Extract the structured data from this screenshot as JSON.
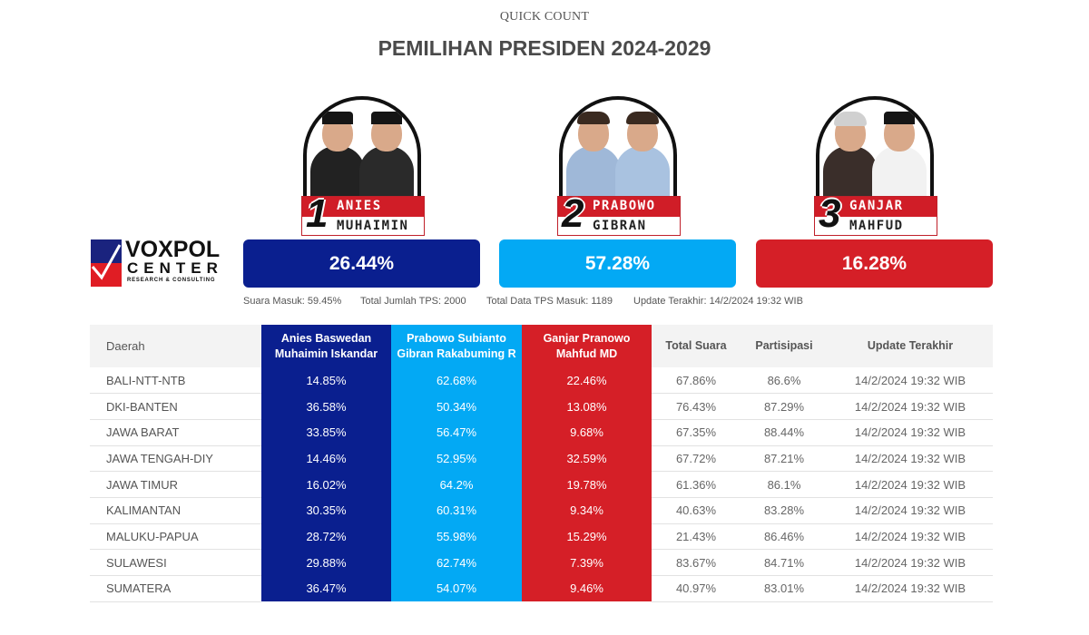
{
  "header": {
    "subtitle": "QUICK COUNT",
    "title": "PEMILIHAN PRESIDEN 2024-2029"
  },
  "logo": {
    "line1": "VOXPOL",
    "line2": "CENTER",
    "line3": "RESEARCH & CONSULTING"
  },
  "colors": {
    "candidate_1": "#0a1f8f",
    "candidate_2": "#03a9f4",
    "candidate_3": "#d51f27"
  },
  "candidates": [
    {
      "number": "1",
      "name_top": "ANIES",
      "name_bottom": "MUHAIMIN",
      "percent": "26.44%"
    },
    {
      "number": "2",
      "name_top": "PRABOWO",
      "name_bottom": "GIBRAN",
      "percent": "57.28%"
    },
    {
      "number": "3",
      "name_top": "GANJAR",
      "name_bottom": "MAHFUD",
      "percent": "16.28%"
    }
  ],
  "stats": {
    "suara_masuk": "Suara Masuk: 59.45%",
    "total_tps": "Total Jumlah TPS: 2000",
    "tps_masuk": "Total Data TPS Masuk: 1189",
    "update": "Update Terakhir: 14/2/2024 19:32 WIB"
  },
  "table": {
    "headers": {
      "daerah": "Daerah",
      "c1_line1": "Anies Baswedan",
      "c1_line2": "Muhaimin Iskandar",
      "c2_line1": "Prabowo Subianto",
      "c2_line2": "Gibran Rakabuming R",
      "c3_line1": "Ganjar Pranowo",
      "c3_line2": "Mahfud MD",
      "total": "Total Suara",
      "partisipasi": "Partisipasi",
      "update": "Update Terakhir"
    },
    "rows": [
      {
        "daerah": "BALI-NTT-NTB",
        "c1": "14.85%",
        "c2": "62.68%",
        "c3": "22.46%",
        "total": "67.86%",
        "partisipasi": "86.6%",
        "update": "14/2/2024 19:32 WIB"
      },
      {
        "daerah": "DKI-BANTEN",
        "c1": "36.58%",
        "c2": "50.34%",
        "c3": "13.08%",
        "total": "76.43%",
        "partisipasi": "87.29%",
        "update": "14/2/2024 19:32 WIB"
      },
      {
        "daerah": "JAWA BARAT",
        "c1": "33.85%",
        "c2": "56.47%",
        "c3": "9.68%",
        "total": "67.35%",
        "partisipasi": "88.44%",
        "update": "14/2/2024 19:32 WIB"
      },
      {
        "daerah": "JAWA TENGAH-DIY",
        "c1": "14.46%",
        "c2": "52.95%",
        "c3": "32.59%",
        "total": "67.72%",
        "partisipasi": "87.21%",
        "update": "14/2/2024 19:32 WIB"
      },
      {
        "daerah": "JAWA TIMUR",
        "c1": "16.02%",
        "c2": "64.2%",
        "c3": "19.78%",
        "total": "61.36%",
        "partisipasi": "86.1%",
        "update": "14/2/2024 19:32 WIB"
      },
      {
        "daerah": "KALIMANTAN",
        "c1": "30.35%",
        "c2": "60.31%",
        "c3": "9.34%",
        "total": "40.63%",
        "partisipasi": "83.28%",
        "update": "14/2/2024 19:32 WIB"
      },
      {
        "daerah": "MALUKU-PAPUA",
        "c1": "28.72%",
        "c2": "55.98%",
        "c3": "15.29%",
        "total": "21.43%",
        "partisipasi": "86.46%",
        "update": "14/2/2024 19:32 WIB"
      },
      {
        "daerah": "SULAWESI",
        "c1": "29.88%",
        "c2": "62.74%",
        "c3": "7.39%",
        "total": "83.67%",
        "partisipasi": "84.71%",
        "update": "14/2/2024 19:32 WIB"
      },
      {
        "daerah": "SUMATERA",
        "c1": "36.47%",
        "c2": "54.07%",
        "c3": "9.46%",
        "total": "40.97%",
        "partisipasi": "83.01%",
        "update": "14/2/2024 19:32 WIB"
      }
    ]
  }
}
